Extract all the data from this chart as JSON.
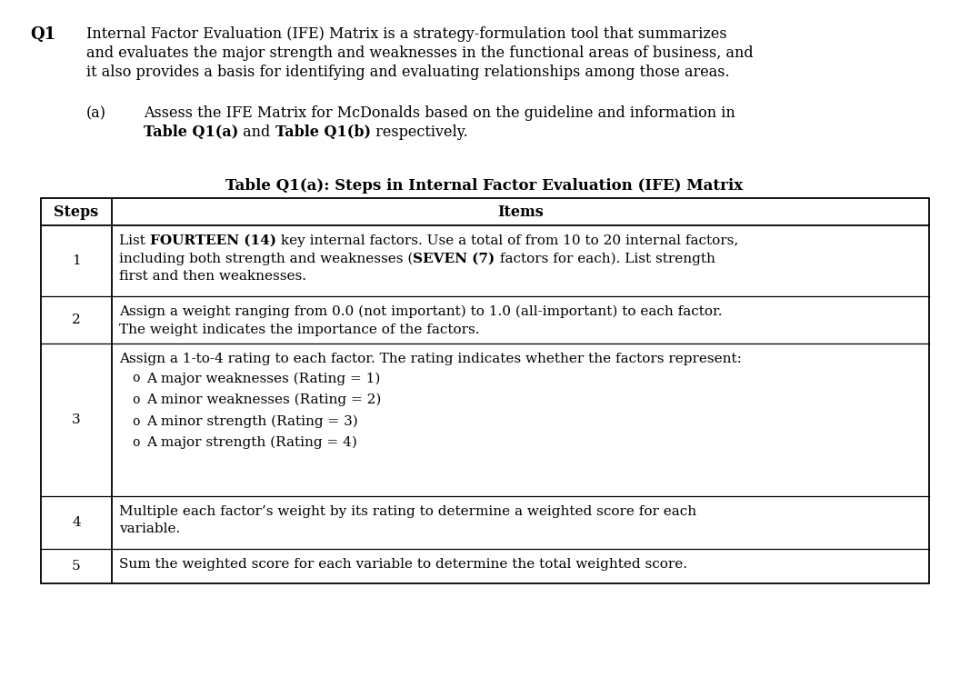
{
  "title_q1": "Q1",
  "intro_line1": "Internal Factor Evaluation (IFE) Matrix is a strategy-formulation tool that summarizes",
  "intro_line2": "and evaluates the major strength and weaknesses in the functional areas of business, and",
  "intro_line3": "it also provides a basis for identifying and evaluating relationships among those areas.",
  "sub_label": "(a)",
  "sub_line1": "Assess the IFE Matrix for McDonalds based on the guideline and information in",
  "sub_line2_parts": [
    {
      "text": "Table Q1(a)",
      "bold": true
    },
    {
      "text": " and ",
      "bold": false
    },
    {
      "text": "Table Q1(b)",
      "bold": true
    },
    {
      "text": " respectively.",
      "bold": false
    }
  ],
  "table_title": "Table Q1(a): Steps in Internal Factor Evaluation (IFE) Matrix",
  "col_headers": [
    "Steps",
    "Items"
  ],
  "steps": [
    "1",
    "2",
    "3",
    "4",
    "5"
  ],
  "row1_parts": [
    {
      "text": "List ",
      "bold": false
    },
    {
      "text": "FOURTEEN (14)",
      "bold": true
    },
    {
      "text": " key internal factors. Use a total of from 10 to 20 internal factors,",
      "bold": false
    }
  ],
  "row1_line2": "including both strength and weaknesses (",
  "row1_line2_bold": "SEVEN (7)",
  "row1_line2_end": " factors for each). List strength",
  "row1_line3": "first and then weaknesses.",
  "row2_line1": "Assign a weight ranging from 0.0 (not important) to 1.0 (all-important) to each factor.",
  "row2_line2": "The weight indicates the importance of the factors.",
  "row3_line1": "Assign a 1-to-4 rating to each factor. The rating indicates whether the factors represent:",
  "row3_bullets": [
    "A major weaknesses (Rating = 1)",
    "A minor weaknesses (Rating = 2)",
    "A minor strength (Rating = 3)",
    "A major strength (Rating = 4)"
  ],
  "row4_line1": "Multiple each factor’s weight by its rating to determine a weighted score for each",
  "row4_line2": "variable.",
  "row5_line1": "Sum the weighted score for each variable to determine the total weighted score.",
  "bg_color": "#ffffff",
  "text_color": "#000000"
}
